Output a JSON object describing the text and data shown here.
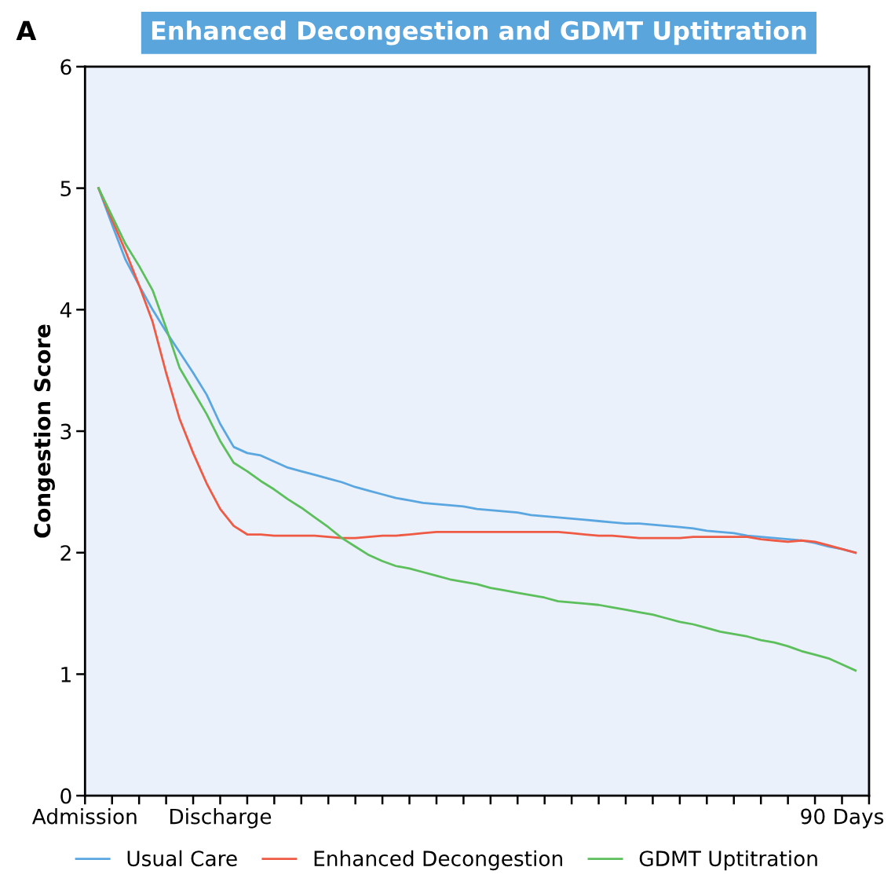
{
  "chart_data": {
    "type": "line",
    "title": "Enhanced Decongestion and GDMT Uptitration",
    "ylabel": "Congestion Score",
    "annotations": [
      "A"
    ],
    "categories": [
      "Admission",
      null,
      null,
      null,
      null,
      null,
      null,
      null,
      null,
      null,
      "Discharge",
      null,
      null,
      null,
      null,
      null,
      null,
      null,
      null,
      null,
      null,
      null,
      null,
      null,
      null,
      null,
      null,
      null,
      null,
      null,
      null,
      null,
      null,
      null,
      null,
      null,
      null,
      null,
      null,
      null,
      null,
      null,
      null,
      null,
      null,
      null,
      null,
      null,
      null,
      null,
      null,
      null,
      null,
      null,
      null,
      null,
      "90 Days",
      null,
      null
    ],
    "ylim": [
      0,
      6
    ],
    "yticks": [
      0,
      1,
      2,
      3,
      4,
      5,
      6
    ],
    "grid": false,
    "legend": "bottom",
    "marker": "none",
    "line_style": "solid",
    "series": [
      {
        "name": "Usual Care",
        "color": "#5aa6e0",
        "values": [
          null,
          5.0,
          4.7,
          4.41,
          4.2,
          4.0,
          3.82,
          3.65,
          3.48,
          3.3,
          3.06,
          2.87,
          2.82,
          2.8,
          2.75,
          2.7,
          2.67,
          2.64,
          2.61,
          2.58,
          2.54,
          2.51,
          2.48,
          2.45,
          2.43,
          2.41,
          2.4,
          2.39,
          2.38,
          2.36,
          2.35,
          2.34,
          2.33,
          2.31,
          2.3,
          2.29,
          2.28,
          2.27,
          2.26,
          2.25,
          2.24,
          2.24,
          2.23,
          2.22,
          2.21,
          2.2,
          2.18,
          2.17,
          2.16,
          2.14,
          2.13,
          2.12,
          2.11,
          2.1,
          2.08,
          2.05,
          2.03,
          2.0,
          null
        ]
      },
      {
        "name": "Enhanced Decongestion",
        "color": "#ef5a44",
        "values": [
          null,
          5.0,
          4.74,
          4.48,
          4.2,
          3.9,
          3.48,
          3.1,
          2.82,
          2.57,
          2.36,
          2.22,
          2.15,
          2.15,
          2.14,
          2.14,
          2.14,
          2.14,
          2.13,
          2.12,
          2.12,
          2.13,
          2.14,
          2.14,
          2.15,
          2.16,
          2.17,
          2.17,
          2.17,
          2.17,
          2.17,
          2.17,
          2.17,
          2.17,
          2.17,
          2.17,
          2.16,
          2.15,
          2.14,
          2.14,
          2.13,
          2.12,
          2.12,
          2.12,
          2.12,
          2.13,
          2.13,
          2.13,
          2.13,
          2.13,
          2.11,
          2.1,
          2.09,
          2.1,
          2.09,
          2.06,
          2.03,
          2.0,
          null
        ]
      },
      {
        "name": "GDMT Uptitration",
        "color": "#5cbf5c",
        "values": [
          null,
          5.0,
          4.77,
          4.54,
          4.36,
          4.16,
          3.85,
          3.52,
          3.33,
          3.14,
          2.92,
          2.74,
          2.67,
          2.59,
          2.52,
          2.44,
          2.37,
          2.29,
          2.21,
          2.12,
          2.05,
          1.98,
          1.93,
          1.89,
          1.87,
          1.84,
          1.81,
          1.78,
          1.76,
          1.74,
          1.71,
          1.69,
          1.67,
          1.65,
          1.63,
          1.6,
          1.59,
          1.58,
          1.57,
          1.55,
          1.53,
          1.51,
          1.49,
          1.46,
          1.43,
          1.41,
          1.38,
          1.35,
          1.33,
          1.31,
          1.28,
          1.26,
          1.23,
          1.19,
          1.16,
          1.13,
          1.08,
          1.03,
          null
        ]
      }
    ]
  }
}
